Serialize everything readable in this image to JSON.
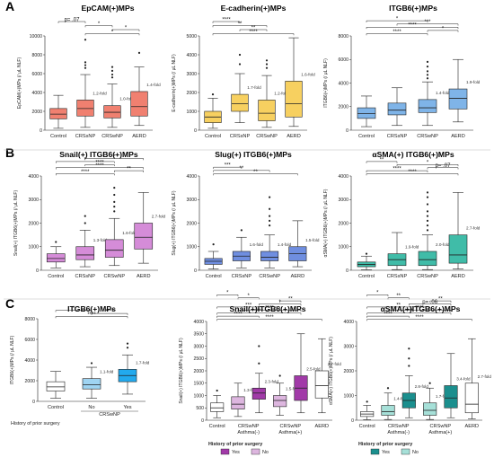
{
  "chart_data": [
    {
      "panel": "A",
      "title": "EpCAM(+)MPs",
      "type": "box",
      "ylabel": "EpCAM(+)MPs (/ μL NLF)",
      "ylim": [
        0,
        10000
      ],
      "yticks": [
        0,
        2000,
        4000,
        6000,
        8000,
        10000
      ],
      "categories": [
        "Control",
        "CRSsNP",
        "CRSwNP",
        "AERD"
      ],
      "colors": [
        "#f08070",
        "#f08070",
        "#f08070",
        "#f08070"
      ],
      "boxes": [
        {
          "min": 200,
          "q1": 1200,
          "median": 1700,
          "q3": 2300,
          "max": 3700,
          "outliers": []
        },
        {
          "min": 300,
          "q1": 1500,
          "median": 2300,
          "q3": 3200,
          "max": 5900,
          "outliers": [
            6600,
            6900,
            7200,
            9600
          ]
        },
        {
          "min": 300,
          "q1": 1300,
          "median": 1900,
          "q3": 2600,
          "max": 4900,
          "outliers": [
            5600,
            5900,
            6300,
            6700
          ]
        },
        {
          "min": 500,
          "q1": 1500,
          "median": 2500,
          "q3": 4100,
          "max": 6700,
          "outliers": [
            8200
          ]
        }
      ],
      "fold": [
        "",
        "1.2-fold",
        "1.0-fold",
        "1.4-fold"
      ],
      "brackets": [
        {
          "from": 0,
          "to": 1,
          "text": "p= .07"
        },
        {
          "from": 1,
          "to": 2,
          "text": "*"
        },
        {
          "from": 2,
          "to": 3,
          "text": "*"
        },
        {
          "from": 1,
          "to": 3,
          "text": "*"
        }
      ]
    },
    {
      "panel": "",
      "title": "E-cadherin(+)MPs",
      "type": "box",
      "ylabel": "E-cadherin(+)MPs (/ μL NLF)",
      "ylim": [
        0,
        5000
      ],
      "yticks": [
        0,
        1000,
        2000,
        3000,
        4000,
        5000
      ],
      "categories": [
        "Control",
        "CRSsNP",
        "CRSwNP",
        "AERD"
      ],
      "colors": [
        "#f7d060",
        "#f7d060",
        "#f7d060",
        "#f7d060"
      ],
      "boxes": [
        {
          "min": 100,
          "q1": 400,
          "median": 700,
          "q3": 1000,
          "max": 1700,
          "outliers": [
            1900
          ]
        },
        {
          "min": 400,
          "q1": 1000,
          "median": 1400,
          "q3": 1900,
          "max": 3000,
          "outliers": [
            3500,
            4000
          ]
        },
        {
          "min": 150,
          "q1": 500,
          "median": 900,
          "q3": 1600,
          "max": 2900,
          "outliers": [
            3300,
            3500,
            3700
          ]
        },
        {
          "min": 200,
          "q1": 700,
          "median": 1400,
          "q3": 2600,
          "max": 4900,
          "outliers": []
        }
      ],
      "fold": [
        "",
        "1.7-fold",
        "1.2-fold",
        "1.6-fold"
      ],
      "brackets": [
        {
          "from": 0,
          "to": 1,
          "text": "****"
        },
        {
          "from": 0,
          "to": 2,
          "text": "**"
        },
        {
          "from": 1,
          "to": 2,
          "text": "**"
        },
        {
          "from": 0,
          "to": 3,
          "text": "****"
        }
      ]
    },
    {
      "panel": "",
      "title": "ITGB6(+)MPs",
      "type": "box",
      "ylabel": "ITGB6(+)MPs (/ μL NLF)",
      "ylim": [
        0,
        8000
      ],
      "yticks": [
        0,
        2000,
        4000,
        6000,
        8000
      ],
      "categories": [
        "Control",
        "CRSsNP",
        "CRSwNP",
        "AERD"
      ],
      "colors": [
        "#7fb4e8",
        "#7fb4e8",
        "#7fb4e8",
        "#7fb4e8"
      ],
      "boxes": [
        {
          "min": 300,
          "q1": 1000,
          "median": 1400,
          "q3": 1900,
          "max": 2900,
          "outliers": []
        },
        {
          "min": 400,
          "q1": 1300,
          "median": 1700,
          "q3": 2300,
          "max": 3600,
          "outliers": []
        },
        {
          "min": 400,
          "q1": 1500,
          "median": 1900,
          "q3": 2600,
          "max": 4100,
          "outliers": [
            4400,
            4700,
            5000,
            5400,
            5800
          ]
        },
        {
          "min": 700,
          "q1": 1800,
          "median": 2700,
          "q3": 3500,
          "max": 6000,
          "outliers": []
        }
      ],
      "fold": [
        "",
        "",
        "1.4-fold",
        "1.9-fold"
      ],
      "brackets": [
        {
          "from": 0,
          "to": 2,
          "text": "*"
        },
        {
          "from": 1,
          "to": 3,
          "text": "***"
        },
        {
          "from": 0,
          "to": 3,
          "text": "****"
        },
        {
          "from": 2,
          "to": 3,
          "text": "*"
        },
        {
          "from": 0,
          "to": 2,
          "text": "****"
        }
      ]
    },
    {
      "panel": "B",
      "title": "Snail(+) ITGB6(+)MPs",
      "type": "box",
      "ylabel": "Snail(+) ITGB6(+)MPs (/ μL NLF)",
      "ylim": [
        0,
        4000
      ],
      "yticks": [
        0,
        1000,
        2000,
        3000,
        4000
      ],
      "categories": [
        "Control",
        "CRSsNP",
        "CRSwNP",
        "AERD"
      ],
      "colors": [
        "#d58cd8",
        "#d58cd8",
        "#d58cd8",
        "#d58cd8"
      ],
      "boxes": [
        {
          "min": 100,
          "q1": 350,
          "median": 500,
          "q3": 700,
          "max": 1000,
          "outliers": [
            1200
          ]
        },
        {
          "min": 150,
          "q1": 450,
          "median": 650,
          "q3": 1000,
          "max": 1700,
          "outliers": [
            2000,
            2300
          ]
        },
        {
          "min": 200,
          "q1": 550,
          "median": 850,
          "q3": 1300,
          "max": 2200,
          "outliers": [
            2500,
            2700,
            2900,
            3200,
            3500
          ]
        },
        {
          "min": 300,
          "q1": 900,
          "median": 1400,
          "q3": 2000,
          "max": 3300,
          "outliers": []
        }
      ],
      "fold": [
        "",
        "1.3-fold",
        "1.6-fold",
        "2.7-fold"
      ],
      "brackets": [
        {
          "from": 1,
          "to": 3,
          "text": "*"
        },
        {
          "from": 0,
          "to": 2,
          "text": "*"
        },
        {
          "from": 1,
          "to": 2,
          "text": "****"
        },
        {
          "from": 0,
          "to": 3,
          "text": "****"
        },
        {
          "from": 2,
          "to": 3,
          "text": "**"
        },
        {
          "from": 0,
          "to": 2,
          "text": "****"
        }
      ]
    },
    {
      "panel": "",
      "title": "Slug(+) ITGB6(+)MPs",
      "type": "box",
      "ylabel": "Slug(+) ITGB6(+)MPs (/ μL NLF)",
      "ylim": [
        0,
        4000
      ],
      "yticks": [
        0,
        1000,
        2000,
        3000,
        4000
      ],
      "categories": [
        "Control",
        "CRSsNP",
        "CRSwNP",
        "AERD"
      ],
      "colors": [
        "#6f8ee0",
        "#6f8ee0",
        "#6f8ee0",
        "#6f8ee0"
      ],
      "boxes": [
        {
          "min": 50,
          "q1": 250,
          "median": 380,
          "q3": 500,
          "max": 800,
          "outliers": [
            1100
          ]
        },
        {
          "min": 100,
          "q1": 400,
          "median": 600,
          "q3": 800,
          "max": 1400,
          "outliers": [
            1700
          ]
        },
        {
          "min": 100,
          "q1": 400,
          "median": 550,
          "q3": 800,
          "max": 1500,
          "outliers": [
            1900,
            2100,
            2300,
            2600,
            3100
          ]
        },
        {
          "min": 150,
          "q1": 400,
          "median": 700,
          "q3": 1000,
          "max": 2100,
          "outliers": []
        }
      ],
      "fold": [
        "",
        "1.6-fold",
        "1.4-fold",
        "1.5-fold"
      ],
      "brackets": [
        {
          "from": 0,
          "to": 1,
          "text": "***"
        },
        {
          "from": 0,
          "to": 2,
          "text": "**"
        },
        {
          "from": 0,
          "to": 3,
          "text": "**"
        }
      ]
    },
    {
      "panel": "",
      "title": "αSMA(+) ITGB6(+)MPs",
      "type": "box",
      "ylabel": "αSMA(+) ITGB6(+)MPs (/ μL NLF)",
      "ylim": [
        0,
        4000
      ],
      "yticks": [
        0,
        1000,
        2000,
        3000,
        4000
      ],
      "categories": [
        "Control",
        "CRSsNP",
        "CRSwNP",
        "AERD"
      ],
      "colors": [
        "#40bca8",
        "#40bca8",
        "#40bca8",
        "#40bca8"
      ],
      "boxes": [
        {
          "min": 20,
          "q1": 150,
          "median": 250,
          "q3": 350,
          "max": 600,
          "outliers": [
            700
          ]
        },
        {
          "min": 30,
          "q1": 200,
          "median": 450,
          "q3": 700,
          "max": 1600,
          "outliers": []
        },
        {
          "min": 30,
          "q1": 200,
          "median": 450,
          "q3": 800,
          "max": 1500,
          "outliers": [
            1700,
            1900,
            2100,
            2300,
            2500,
            2800,
            3100,
            3300
          ]
        },
        {
          "min": 50,
          "q1": 300,
          "median": 650,
          "q3": 1500,
          "max": 3300,
          "outliers": []
        }
      ],
      "fold": [
        "",
        "1.9-fold",
        "2.0-fold",
        "2.7-fold"
      ],
      "brackets": [
        {
          "from": 0,
          "to": 1,
          "text": "**"
        },
        {
          "from": 1,
          "to": 3,
          "text": "*"
        },
        {
          "from": 2,
          "to": 3,
          "text": "p= .07"
        },
        {
          "from": 0,
          "to": 2,
          "text": "****"
        },
        {
          "from": 0,
          "to": 3,
          "text": "****"
        }
      ]
    },
    {
      "panel": "C",
      "title": "ITGB6(+)MPs",
      "type": "box",
      "ylabel": "ITGB6(+)MPs (/ μL NLF)",
      "ylim": [
        0,
        8000
      ],
      "yticks": [
        0,
        2000,
        4000,
        6000,
        8000
      ],
      "categories": [
        "Control",
        "No",
        "Yes"
      ],
      "group_label": "CRSwNP",
      "row_label": "History of prior surgery",
      "colors": [
        "#ffffff",
        "#9fd4f2",
        "#22aaee"
      ],
      "boxes": [
        {
          "min": 300,
          "q1": 1000,
          "median": 1400,
          "q3": 1900,
          "max": 2900,
          "outliers": []
        },
        {
          "min": 300,
          "q1": 1200,
          "median": 1600,
          "q3": 2200,
          "max": 3300,
          "outliers": [
            3700
          ]
        },
        {
          "min": 700,
          "q1": 1900,
          "median": 2500,
          "q3": 3100,
          "max": 4500,
          "outliers": [
            5200,
            5600
          ]
        }
      ],
      "fold": [
        "",
        "1.1-fold",
        "1.7-fold"
      ],
      "brackets": [
        {
          "from": 0,
          "to": 1,
          "text": "*"
        },
        {
          "from": 1,
          "to": 2,
          "text": "****"
        },
        {
          "from": 0,
          "to": 2,
          "text": "****"
        }
      ]
    },
    {
      "panel": "",
      "title": "Snail(+)ITGB6(+)MPs",
      "type": "box",
      "ylabel": "Snail(+) ITGB6(+)MPs (/ μL NLF)",
      "ylim": [
        0,
        4000
      ],
      "yticks": [
        0,
        500,
        1000,
        1500,
        2000,
        2500,
        3000,
        3500,
        4000
      ],
      "categories": [
        "Control",
        "CRSwNP Asthma(-)",
        "CRSwNP Asthma(-) yes",
        "CRSwNP Asthma(+)",
        "CRSwNP Asthma(+) yes",
        "AERD"
      ],
      "cat_labels": [
        "Control",
        "CRSwNP\nAsthma(-)",
        "",
        "CRSwNP\nAsthma(+)",
        "",
        "AERD"
      ],
      "colors": [
        "#ffffff",
        "#ddb6df",
        "#a13aa8",
        "#ddb6df",
        "#a13aa8",
        "#ffffff"
      ],
      "boxes": [
        {
          "min": 100,
          "q1": 350,
          "median": 500,
          "q3": 700,
          "max": 1000,
          "outliers": [
            1200
          ]
        },
        {
          "min": 150,
          "q1": 450,
          "median": 650,
          "q3": 950,
          "max": 1500,
          "outliers": []
        },
        {
          "min": 300,
          "q1": 850,
          "median": 1100,
          "q3": 1300,
          "max": 1900,
          "outliers": [
            2300,
            3000
          ]
        },
        {
          "min": 200,
          "q1": 550,
          "median": 800,
          "q3": 1000,
          "max": 1500,
          "outliers": [
            1800
          ]
        },
        {
          "min": 300,
          "q1": 800,
          "median": 1300,
          "q3": 1800,
          "max": 3500,
          "outliers": []
        },
        {
          "min": 300,
          "q1": 900,
          "median": 1400,
          "q3": 2000,
          "max": 3300,
          "outliers": []
        }
      ],
      "fold": [
        "",
        "1.3-fold",
        "2.3-fold",
        "1.5-fold",
        "2.5-fold",
        "2.7-fold"
      ],
      "legend_title": "History of prior surgery",
      "legend": [
        {
          "label": "Yes",
          "color": "#a13aa8"
        },
        {
          "label": "No",
          "color": "#ddb6df"
        }
      ],
      "brackets": [
        {
          "from": 0,
          "to": 1,
          "text": "*"
        },
        {
          "from": 1,
          "to": 2,
          "text": "*"
        },
        {
          "from": 3,
          "to": 4,
          "text": "**"
        },
        {
          "from": 2,
          "to": 4,
          "text": "*"
        },
        {
          "from": 0,
          "to": 3,
          "text": "***"
        },
        {
          "from": 1,
          "to": 4,
          "text": "****"
        },
        {
          "from": 0,
          "to": 4,
          "text": "****"
        },
        {
          "from": 0,
          "to": 2,
          "text": "****"
        },
        {
          "from": 0,
          "to": 5,
          "text": "****"
        }
      ]
    },
    {
      "panel": "",
      "title": "αSMA(+)ITGB6(+)MPs",
      "type": "box",
      "ylabel": "αSMA(+) ITGB6(+)MPs (/ μL NLF)",
      "ylim": [
        0,
        4000
      ],
      "yticks": [
        0,
        1000,
        2000,
        3000,
        4000
      ],
      "categories": [
        "Control",
        "CRSwNP Asthma(-)",
        "CRSwNP Asthma(-) yes",
        "CRSwNP Asthma(+)",
        "CRSwNP Asthma(+) yes",
        "AERD"
      ],
      "cat_labels": [
        "Control",
        "CRSwNP\nAsthma(-)",
        "",
        "CRSwNP\nAsthma(+)",
        "",
        "AERD"
      ],
      "colors": [
        "#ffffff",
        "#a6e0d8",
        "#1b8f8e",
        "#a6e0d8",
        "#1b8f8e",
        "#ffffff"
      ],
      "boxes": [
        {
          "min": 20,
          "q1": 150,
          "median": 250,
          "q3": 350,
          "max": 600,
          "outliers": [
            750
          ]
        },
        {
          "min": 30,
          "q1": 200,
          "median": 350,
          "q3": 600,
          "max": 1100,
          "outliers": [
            1300
          ]
        },
        {
          "min": 100,
          "q1": 500,
          "median": 800,
          "q3": 1100,
          "max": 1800,
          "outliers": [
            2200,
            2500,
            2900
          ]
        },
        {
          "min": 30,
          "q1": 200,
          "median": 400,
          "q3": 700,
          "max": 1300,
          "outliers": [
            1500
          ]
        },
        {
          "min": 100,
          "q1": 500,
          "median": 900,
          "q3": 1400,
          "max": 2700,
          "outliers": []
        },
        {
          "min": 50,
          "q1": 300,
          "median": 650,
          "q3": 1500,
          "max": 3300,
          "outliers": []
        }
      ],
      "fold": [
        "",
        "1.4-fold",
        "2.8-fold",
        "1.7-fold",
        "3.4-fold",
        "2.7-fold"
      ],
      "legend_title": "History of prior surgery",
      "legend": [
        {
          "label": "Yes",
          "color": "#1b8f8e"
        },
        {
          "label": "No",
          "color": "#a6e0d8"
        }
      ],
      "brackets": [
        {
          "from": 0,
          "to": 1,
          "text": "*"
        },
        {
          "from": 1,
          "to": 2,
          "text": "**"
        },
        {
          "from": 3,
          "to": 4,
          "text": "**"
        },
        {
          "from": 2,
          "to": 4,
          "text": "p= .06"
        },
        {
          "from": 0,
          "to": 3,
          "text": "**"
        },
        {
          "from": 1,
          "to": 4,
          "text": "****"
        },
        {
          "from": 0,
          "to": 4,
          "text": "****"
        },
        {
          "from": 0,
          "to": 2,
          "text": "****"
        },
        {
          "from": 0,
          "to": 5,
          "text": "****"
        }
      ]
    }
  ]
}
